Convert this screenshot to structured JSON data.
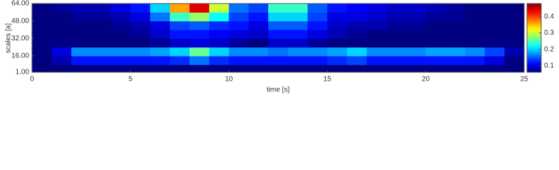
{
  "chart_data": {
    "type": "heatmap",
    "xlabel": "time [s]",
    "ylabel": "scales [a]",
    "xlim": [
      0,
      25
    ],
    "ylim": [
      1,
      64
    ],
    "xticks": [
      0,
      5,
      10,
      15,
      20,
      25
    ],
    "yticks": [
      {
        "value": 1,
        "label": "1.00"
      },
      {
        "value": 16,
        "label": "16.00"
      },
      {
        "value": 32,
        "label": "32.00"
      },
      {
        "value": 48,
        "label": "48.00"
      },
      {
        "value": 64,
        "label": "64.00"
      }
    ],
    "x_edges": [
      0,
      1,
      2,
      3,
      4,
      5,
      6,
      7,
      8,
      9,
      10,
      11,
      12,
      13,
      14,
      15,
      16,
      17,
      18,
      19,
      20,
      21,
      22,
      23,
      24,
      25
    ],
    "y_edges": [
      1,
      8,
      16,
      24,
      32,
      40,
      48,
      56,
      64
    ],
    "colormap": "jet",
    "clim": [
      0.06,
      0.48
    ],
    "cticks": [
      0.1,
      0.2,
      0.3,
      0.4
    ],
    "z": [
      [
        0.03,
        0.03,
        0.03,
        0.03,
        0.03,
        0.03,
        0.03,
        0.03,
        0.03,
        0.03,
        0.03,
        0.03,
        0.03,
        0.03,
        0.03,
        0.03,
        0.03,
        0.03,
        0.03,
        0.03,
        0.03,
        0.03,
        0.03,
        0.03,
        0.03
      ],
      [
        0.04,
        0.08,
        0.12,
        0.12,
        0.12,
        0.12,
        0.12,
        0.13,
        0.16,
        0.13,
        0.12,
        0.12,
        0.12,
        0.12,
        0.12,
        0.13,
        0.14,
        0.12,
        0.12,
        0.12,
        0.12,
        0.12,
        0.12,
        0.1,
        0.06
      ],
      [
        0.05,
        0.1,
        0.17,
        0.17,
        0.17,
        0.17,
        0.18,
        0.2,
        0.26,
        0.2,
        0.17,
        0.17,
        0.16,
        0.17,
        0.17,
        0.18,
        0.2,
        0.17,
        0.17,
        0.17,
        0.18,
        0.18,
        0.17,
        0.14,
        0.08
      ],
      [
        0.04,
        0.04,
        0.05,
        0.05,
        0.05,
        0.06,
        0.07,
        0.09,
        0.1,
        0.09,
        0.07,
        0.06,
        0.09,
        0.09,
        0.07,
        0.06,
        0.05,
        0.05,
        0.05,
        0.05,
        0.05,
        0.05,
        0.05,
        0.04,
        0.04
      ],
      [
        0.04,
        0.04,
        0.05,
        0.05,
        0.06,
        0.07,
        0.09,
        0.12,
        0.12,
        0.11,
        0.1,
        0.09,
        0.12,
        0.12,
        0.1,
        0.08,
        0.07,
        0.06,
        0.06,
        0.06,
        0.06,
        0.05,
        0.05,
        0.04,
        0.04
      ],
      [
        0.04,
        0.05,
        0.06,
        0.06,
        0.07,
        0.08,
        0.1,
        0.14,
        0.15,
        0.13,
        0.12,
        0.1,
        0.15,
        0.15,
        0.12,
        0.09,
        0.08,
        0.08,
        0.07,
        0.07,
        0.06,
        0.06,
        0.05,
        0.05,
        0.04
      ],
      [
        0.05,
        0.06,
        0.07,
        0.07,
        0.08,
        0.1,
        0.16,
        0.24,
        0.28,
        0.22,
        0.14,
        0.12,
        0.2,
        0.2,
        0.14,
        0.1,
        0.1,
        0.09,
        0.08,
        0.08,
        0.07,
        0.07,
        0.06,
        0.05,
        0.05
      ],
      [
        0.06,
        0.07,
        0.08,
        0.08,
        0.1,
        0.12,
        0.2,
        0.36,
        0.44,
        0.3,
        0.16,
        0.14,
        0.24,
        0.24,
        0.15,
        0.12,
        0.11,
        0.1,
        0.09,
        0.09,
        0.08,
        0.07,
        0.06,
        0.06,
        0.05
      ]
    ]
  }
}
